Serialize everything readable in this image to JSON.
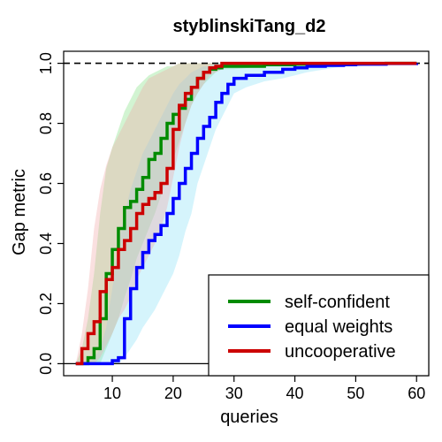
{
  "chart_data": {
    "type": "line",
    "title": "styblinskiTang_d2",
    "xlabel": "queries",
    "ylabel": "Gap metric",
    "xlim": [
      2,
      62
    ],
    "ylim": [
      -0.04,
      1.04
    ],
    "xticks": [
      10,
      20,
      30,
      40,
      50,
      60
    ],
    "yticks": [
      0.0,
      0.2,
      0.4,
      0.6,
      0.8,
      1.0
    ],
    "xtick_labels": [
      "10",
      "20",
      "30",
      "40",
      "50",
      "60"
    ],
    "ytick_labels": [
      "0.0",
      "0.2",
      "0.4",
      "0.6",
      "0.8",
      "1.0"
    ],
    "reference_lines": [
      {
        "y": 1.0,
        "style": "dashed"
      },
      {
        "y": 0.0,
        "style": "solid"
      }
    ],
    "legend": {
      "position": "bottom-right"
    },
    "series": [
      {
        "name": "self-confident",
        "color": "#008B00",
        "band_color": "#7FE07F",
        "x": [
          4,
          5,
          6,
          7,
          8,
          9,
          10,
          11,
          12,
          13,
          14,
          15,
          16,
          17,
          18,
          19,
          20,
          21,
          22,
          23,
          24,
          25,
          26,
          27,
          28,
          29,
          30,
          35,
          40,
          45,
          50,
          55,
          60
        ],
        "y": [
          0.0,
          0.0,
          0.02,
          0.05,
          0.15,
          0.3,
          0.38,
          0.45,
          0.52,
          0.54,
          0.58,
          0.62,
          0.68,
          0.7,
          0.75,
          0.8,
          0.83,
          0.85,
          0.88,
          0.92,
          0.95,
          0.97,
          0.98,
          0.985,
          0.99,
          0.99,
          0.99,
          0.995,
          0.997,
          0.998,
          0.999,
          1.0,
          1.0
        ],
        "lower": [
          0.0,
          0.0,
          0.0,
          0.0,
          0.0,
          0.05,
          0.1,
          0.15,
          0.22,
          0.28,
          0.35,
          0.4,
          0.45,
          0.5,
          0.56,
          0.62,
          0.68,
          0.74,
          0.8,
          0.86,
          0.9,
          0.93,
          0.95,
          0.97,
          0.98,
          0.98,
          0.98,
          0.99,
          0.99,
          0.99,
          0.995,
          0.998,
          0.998
        ],
        "upper": [
          0.0,
          0.05,
          0.15,
          0.3,
          0.5,
          0.65,
          0.72,
          0.78,
          0.84,
          0.88,
          0.92,
          0.94,
          0.96,
          0.97,
          0.98,
          0.99,
          0.99,
          1.0,
          1.0,
          1.0,
          1.0,
          1.0,
          1.0,
          1.0,
          1.0,
          1.0,
          1.0,
          1.0,
          1.0,
          1.0,
          1.0,
          1.0,
          1.0
        ]
      },
      {
        "name": "equal weights",
        "color": "#0000FF",
        "band_color": "#87DFF7",
        "x": [
          4,
          5,
          6,
          7,
          8,
          9,
          10,
          11,
          12,
          13,
          14,
          15,
          16,
          17,
          18,
          19,
          20,
          21,
          22,
          23,
          24,
          25,
          26,
          27,
          28,
          29,
          30,
          32,
          35,
          38,
          40,
          42,
          45,
          48,
          50,
          55,
          60
        ],
        "y": [
          0.0,
          0.0,
          0.0,
          0.0,
          0.0,
          0.0,
          0.01,
          0.02,
          0.15,
          0.25,
          0.32,
          0.37,
          0.41,
          0.43,
          0.46,
          0.5,
          0.55,
          0.6,
          0.65,
          0.7,
          0.75,
          0.79,
          0.82,
          0.87,
          0.9,
          0.93,
          0.95,
          0.96,
          0.97,
          0.98,
          0.985,
          0.99,
          0.993,
          0.995,
          0.997,
          0.999,
          1.0
        ],
        "lower": [
          0.0,
          0.0,
          0.0,
          0.0,
          0.0,
          0.0,
          0.0,
          0.0,
          0.02,
          0.05,
          0.08,
          0.12,
          0.15,
          0.18,
          0.22,
          0.26,
          0.3,
          0.36,
          0.44,
          0.5,
          0.6,
          0.66,
          0.72,
          0.78,
          0.82,
          0.86,
          0.9,
          0.92,
          0.94,
          0.95,
          0.96,
          0.97,
          0.98,
          0.99,
          0.99,
          0.995,
          0.998
        ],
        "upper": [
          0.0,
          0.0,
          0.0,
          0.02,
          0.05,
          0.12,
          0.25,
          0.4,
          0.5,
          0.58,
          0.64,
          0.7,
          0.74,
          0.78,
          0.82,
          0.86,
          0.9,
          0.93,
          0.95,
          0.97,
          0.98,
          0.99,
          0.99,
          1.0,
          1.0,
          1.0,
          1.0,
          1.0,
          1.0,
          1.0,
          1.0,
          1.0,
          1.0,
          1.0,
          1.0,
          1.0,
          1.0
        ]
      },
      {
        "name": "uncooperative",
        "color": "#CC0000",
        "band_color": "#F2A6A6",
        "x": [
          4,
          5,
          6,
          7,
          8,
          9,
          10,
          11,
          12,
          13,
          14,
          15,
          16,
          17,
          18,
          19,
          20,
          21,
          22,
          23,
          24,
          25,
          26,
          27,
          28,
          29,
          30,
          35,
          40,
          45,
          50,
          55,
          60
        ],
        "y": [
          0.0,
          0.05,
          0.1,
          0.14,
          0.24,
          0.28,
          0.32,
          0.38,
          0.41,
          0.45,
          0.5,
          0.53,
          0.55,
          0.57,
          0.6,
          0.65,
          0.78,
          0.86,
          0.9,
          0.92,
          0.95,
          0.97,
          0.985,
          0.99,
          1.0,
          1.0,
          1.0,
          1.0,
          1.0,
          1.0,
          1.0,
          1.0,
          1.0
        ],
        "lower": [
          0.0,
          0.0,
          0.0,
          0.0,
          0.02,
          0.06,
          0.1,
          0.15,
          0.18,
          0.22,
          0.28,
          0.32,
          0.36,
          0.4,
          0.45,
          0.52,
          0.62,
          0.72,
          0.8,
          0.86,
          0.9,
          0.93,
          0.96,
          0.97,
          0.98,
          0.99,
          0.99,
          1.0,
          1.0,
          1.0,
          1.0,
          1.0,
          1.0
        ],
        "upper": [
          0.0,
          0.1,
          0.25,
          0.45,
          0.58,
          0.66,
          0.72,
          0.76,
          0.8,
          0.84,
          0.88,
          0.92,
          0.95,
          0.96,
          0.97,
          0.98,
          0.99,
          1.0,
          1.0,
          1.0,
          1.0,
          1.0,
          1.0,
          1.0,
          1.0,
          1.0,
          1.0,
          1.0,
          1.0,
          1.0,
          1.0,
          1.0,
          1.0
        ]
      }
    ]
  }
}
